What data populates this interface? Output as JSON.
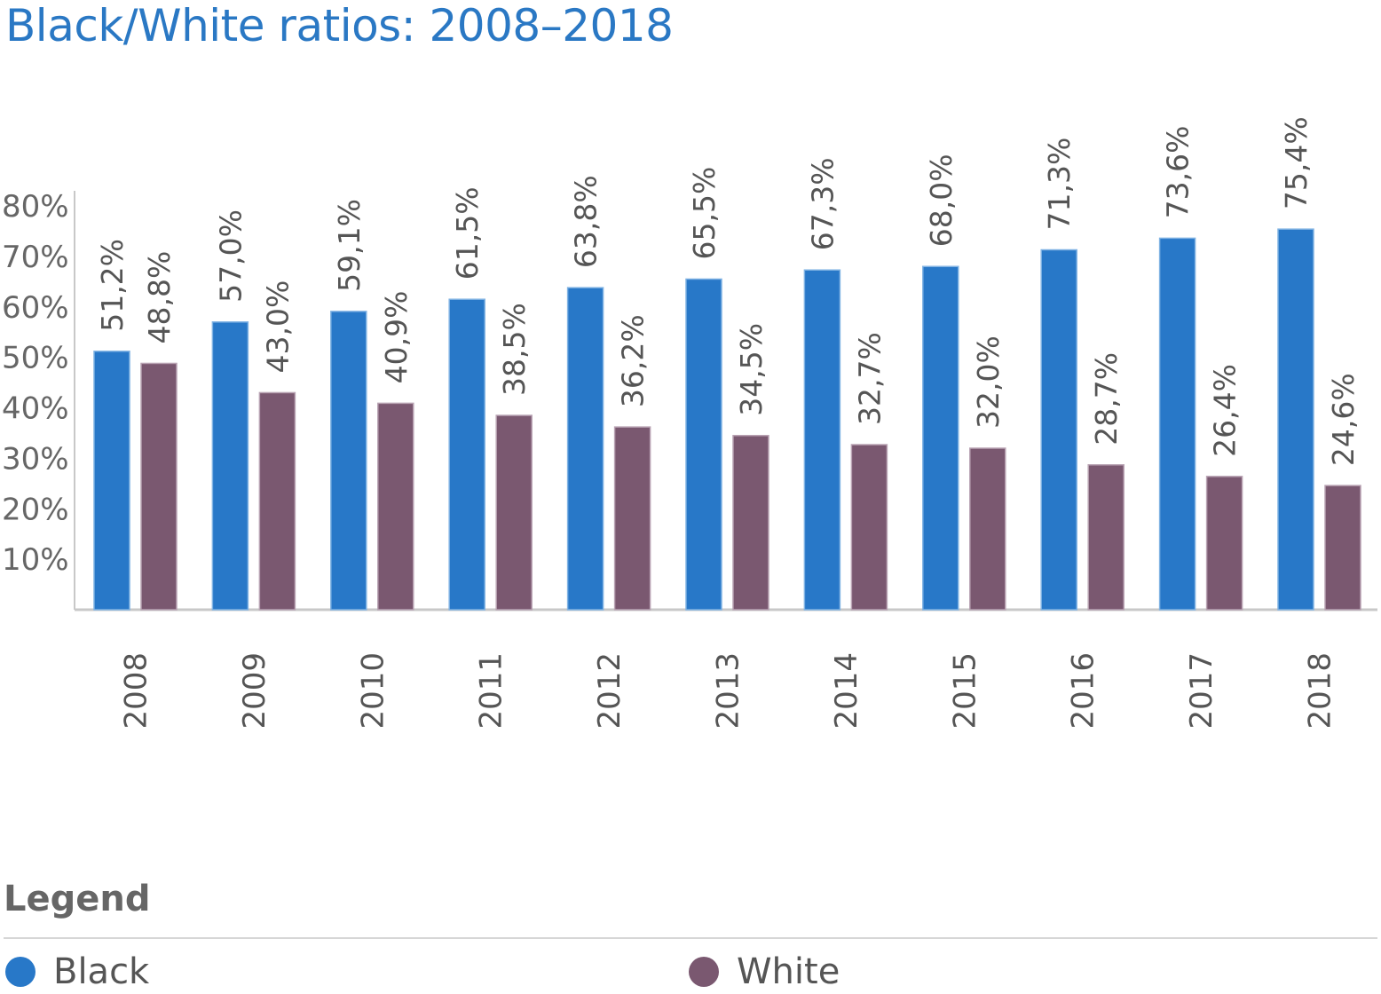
{
  "title": "Black/White ratios: 2008–2018",
  "legend": {
    "title": "Legend",
    "items": [
      {
        "label": "Black",
        "color": "#2878c8"
      },
      {
        "label": "White",
        "color": "#7a5870"
      }
    ]
  },
  "chart_data": {
    "type": "bar",
    "categories": [
      "2008",
      "2009",
      "2010",
      "2011",
      "2012",
      "2013",
      "2014",
      "2015",
      "2016",
      "2017",
      "2018"
    ],
    "series": [
      {
        "name": "Black",
        "color": "#2878c8",
        "values": [
          51.2,
          57.0,
          59.1,
          61.5,
          63.8,
          65.5,
          67.3,
          68.0,
          71.3,
          73.6,
          75.4
        ],
        "labels": [
          "51,2%",
          "57,0%",
          "59,1%",
          "61,5%",
          "63,8%",
          "65,5%",
          "67,3%",
          "68,0%",
          "71,3%",
          "73,6%",
          "75,4%"
        ]
      },
      {
        "name": "White",
        "color": "#7a5870",
        "values": [
          48.8,
          43.0,
          40.9,
          38.5,
          36.2,
          34.5,
          32.7,
          32.0,
          28.7,
          26.4,
          24.6
        ],
        "labels": [
          "48,8%",
          "43,0%",
          "40,9%",
          "38,5%",
          "36,2%",
          "34,5%",
          "32,7%",
          "32,0%",
          "28,7%",
          "26,4%",
          "24,6%"
        ]
      }
    ],
    "yticks": [
      "10%",
      "20%",
      "30%",
      "40%",
      "50%",
      "60%",
      "70%",
      "80%"
    ],
    "ylim": [
      0,
      80
    ],
    "grid": false,
    "legend_position": "bottom"
  }
}
